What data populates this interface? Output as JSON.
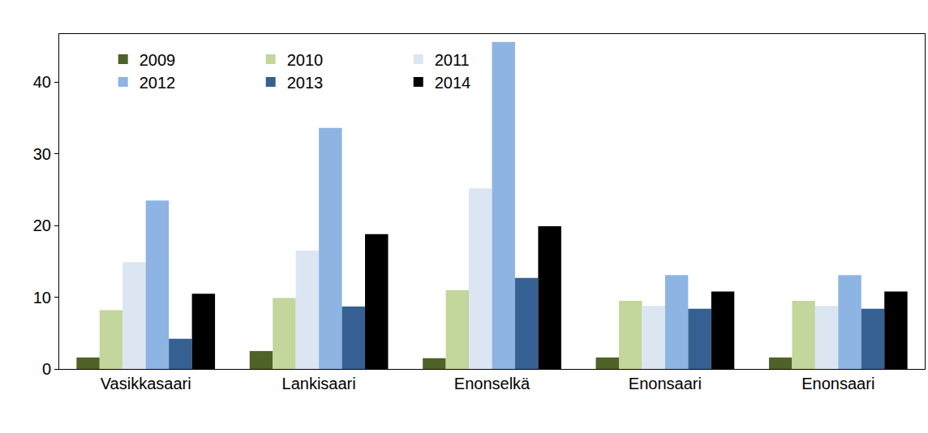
{
  "chart_data": {
    "type": "bar",
    "categories": [
      "Vasikkasaari",
      "Lankisaari",
      "Enonselkä",
      "Enonsaari",
      "Enonsaari"
    ],
    "series": [
      {
        "name": "2009",
        "color": "#4f6228",
        "values": [
          1.6,
          2.5,
          1.5,
          1.6,
          1.6
        ]
      },
      {
        "name": "2010",
        "color": "#c3d69b",
        "values": [
          8.2,
          9.9,
          11.0,
          9.5,
          9.5
        ]
      },
      {
        "name": "2011",
        "color": "#dce6f2",
        "values": [
          14.9,
          16.5,
          25.2,
          8.8,
          8.8
        ]
      },
      {
        "name": "2012",
        "color": "#8eb4e3",
        "values": [
          23.5,
          33.6,
          45.6,
          13.1,
          13.1
        ]
      },
      {
        "name": "2013",
        "color": "#376092",
        "values": [
          4.2,
          8.7,
          12.7,
          8.4,
          8.4
        ]
      },
      {
        "name": "2014",
        "color": "#000000",
        "values": [
          10.5,
          18.8,
          19.9,
          10.8,
          10.8
        ]
      }
    ],
    "ylim": [
      0,
      46.7
    ],
    "yticks": [
      0,
      10,
      20,
      30,
      40
    ],
    "grid": false,
    "legend": "upper left"
  }
}
